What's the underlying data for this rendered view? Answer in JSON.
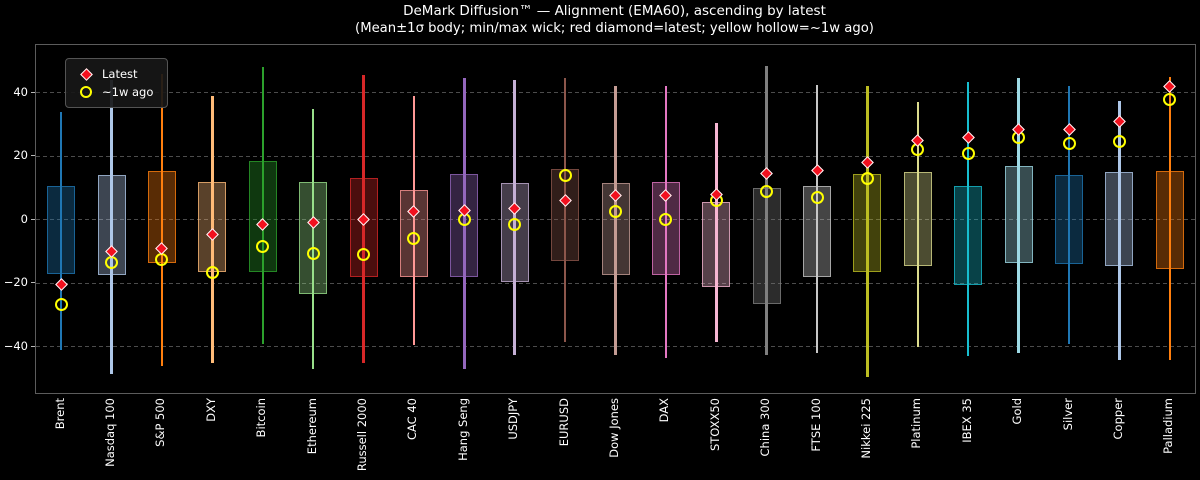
{
  "header": {
    "title": "DeMark Diffusion™ — Alignment (EMA60), ascending by latest",
    "subtitle": "(Mean±1σ body; min/max wick; red diamond=latest; yellow hollow=~1w ago)"
  },
  "legend": {
    "latest_label": "Latest",
    "week_label": "~1w ago"
  },
  "chart_data": {
    "type": "candlestick-summary",
    "title": "DeMark Diffusion™ — Alignment (EMA60), ascending by latest",
    "subtitle": "(Mean±1σ body; min/max wick; red diamond=latest; yellow hollow=~1w ago)",
    "ylim": [
      -54.5,
      55
    ],
    "yticks": [
      40,
      20,
      0,
      -20,
      -40
    ],
    "ytick_labels": [
      "40",
      "20",
      "0",
      "−20",
      "−40"
    ],
    "grid": "horizontal-dashed",
    "legend_position": "upper-left",
    "background": "#000000",
    "latest_marker": {
      "shape": "diamond",
      "color": "#f2101e",
      "edge": "#ffffff",
      "label": "Latest"
    },
    "week_marker": {
      "shape": "hollow-circle",
      "color": "#ffff00",
      "label": "~1w ago"
    },
    "box_fill_alpha": 0.35,
    "box_edge_alpha": 0.75,
    "series": [
      {
        "name": "Brent",
        "color": "#1f77b4",
        "min": -41,
        "max": 34,
        "box_low": -17,
        "box_high": 10.5,
        "latest": -20.5,
        "week_ago": -26.5
      },
      {
        "name": "Nasdaq 100",
        "color": "#aec7e8",
        "min": -48.5,
        "max": 44,
        "box_low": -17.5,
        "box_high": 14,
        "latest": -10,
        "week_ago": -13.5
      },
      {
        "name": "S&P 500",
        "color": "#ff7f0e",
        "min": -46,
        "max": 46,
        "box_low": -13.5,
        "box_high": 15.5,
        "latest": -9,
        "week_ago": -12.5
      },
      {
        "name": "DXY",
        "color": "#ffbb78",
        "min": -45,
        "max": 39,
        "box_low": -16.5,
        "box_high": 12,
        "latest": -4.5,
        "week_ago": -16.5
      },
      {
        "name": "Bitcoin",
        "color": "#2ca02c",
        "min": -39,
        "max": 48,
        "box_low": -16.5,
        "box_high": 18.5,
        "latest": -1.5,
        "week_ago": -8.5
      },
      {
        "name": "Ethereum",
        "color": "#98df8a",
        "min": -47,
        "max": 35,
        "box_low": -23.5,
        "box_high": 12,
        "latest": -1,
        "week_ago": -10.5
      },
      {
        "name": "Russell 2000",
        "color": "#d62728",
        "min": -45,
        "max": 45.5,
        "box_low": -18,
        "box_high": 13,
        "latest": 0,
        "week_ago": -11
      },
      {
        "name": "CAC 40",
        "color": "#ff9896",
        "min": -39.5,
        "max": 39,
        "box_low": -18,
        "box_high": 9.5,
        "latest": 2.5,
        "week_ago": -6
      },
      {
        "name": "Hang Seng",
        "color": "#9467bd",
        "min": -47,
        "max": 44.5,
        "box_low": -18,
        "box_high": 14.5,
        "latest": 3,
        "week_ago": 0
      },
      {
        "name": "USDJPY",
        "color": "#c5b0d5",
        "min": -42.5,
        "max": 44,
        "box_low": -19.5,
        "box_high": 11.5,
        "latest": 3.5,
        "week_ago": -1.5
      },
      {
        "name": "EURUSD",
        "color": "#8c564b",
        "min": -38.5,
        "max": 44.5,
        "box_low": -13,
        "box_high": 16,
        "latest": 6,
        "week_ago": 14
      },
      {
        "name": "Dow Jones",
        "color": "#c49c94",
        "min": -42.5,
        "max": 42,
        "box_low": -17.5,
        "box_high": 11.5,
        "latest": 7.5,
        "week_ago": 2.5
      },
      {
        "name": "DAX",
        "color": "#e377c2",
        "min": -43.5,
        "max": 42,
        "box_low": -17.5,
        "box_high": 12,
        "latest": 7.5,
        "week_ago": 0
      },
      {
        "name": "STOXX50",
        "color": "#f7b6d2",
        "min": -38.5,
        "max": 30.5,
        "box_low": -21,
        "box_high": 5.5,
        "latest": 8,
        "week_ago": 6
      },
      {
        "name": "China 300",
        "color": "#7f7f7f",
        "min": -42.5,
        "max": 48.5,
        "box_low": -26.5,
        "box_high": 10,
        "latest": 14.5,
        "week_ago": 9
      },
      {
        "name": "FTSE 100",
        "color": "#c7c7c7",
        "min": -42,
        "max": 42.5,
        "box_low": -18,
        "box_high": 10.5,
        "latest": 15.5,
        "week_ago": 7
      },
      {
        "name": "Nikkei 225",
        "color": "#bcbd22",
        "min": -49.5,
        "max": 42,
        "box_low": -16.5,
        "box_high": 14.5,
        "latest": 18,
        "week_ago": 13
      },
      {
        "name": "Platinum",
        "color": "#dbdb8d",
        "min": -40,
        "max": 37,
        "box_low": -14.5,
        "box_high": 15,
        "latest": 25,
        "week_ago": 22
      },
      {
        "name": "IBEX 35",
        "color": "#17becf",
        "min": -43,
        "max": 43.5,
        "box_low": -20.5,
        "box_high": 10.5,
        "latest": 26,
        "week_ago": 21
      },
      {
        "name": "Gold",
        "color": "#9edae5",
        "min": -42,
        "max": 44.5,
        "box_low": -13.5,
        "box_high": 17,
        "latest": 28.5,
        "week_ago": 26
      },
      {
        "name": "Silver",
        "color": "#1f77b4",
        "min": -39,
        "max": 42,
        "box_low": -14,
        "box_high": 14,
        "latest": 28.5,
        "week_ago": 24
      },
      {
        "name": "Copper",
        "color": "#aec7e8",
        "min": -44,
        "max": 37.5,
        "box_low": -14.5,
        "box_high": 15,
        "latest": 31,
        "week_ago": 24.5
      },
      {
        "name": "Palladium",
        "color": "#ff7f0e",
        "min": -44,
        "max": 45,
        "box_low": -15.5,
        "box_high": 15.5,
        "latest": 42,
        "week_ago": 38
      }
    ]
  }
}
